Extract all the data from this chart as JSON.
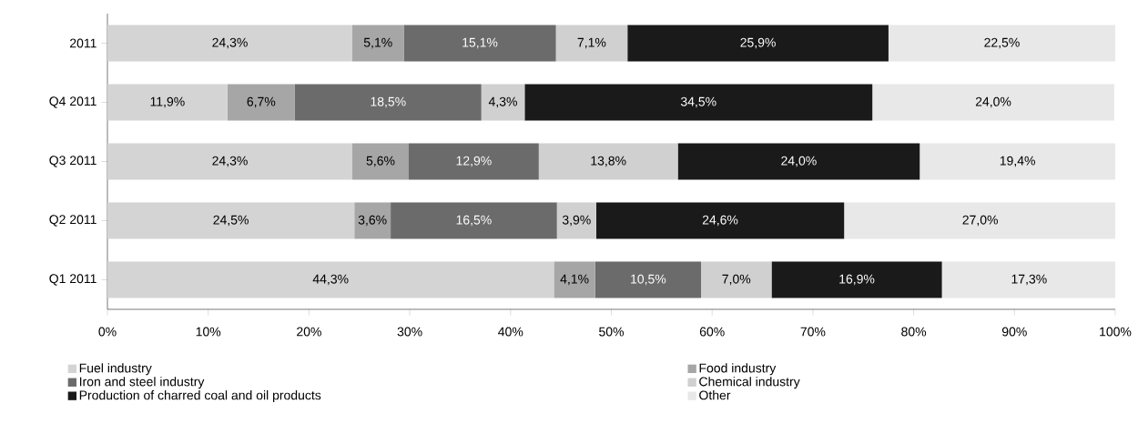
{
  "chart_data": {
    "type": "bar",
    "orientation": "horizontal",
    "stacked": true,
    "legend": "bottom",
    "categories": [
      "2011",
      "Q4 2011",
      "Q3 2011",
      "Q2 2011",
      "Q1 2011"
    ],
    "xlim": [
      0,
      100
    ],
    "xticks": [
      {
        "value": 0,
        "label": "0%"
      },
      {
        "value": 10,
        "label": "10%"
      },
      {
        "value": 20,
        "label": "20%"
      },
      {
        "value": 30,
        "label": "30%"
      },
      {
        "value": 40,
        "label": "40%"
      },
      {
        "value": 50,
        "label": "50%"
      },
      {
        "value": 60,
        "label": "60%"
      },
      {
        "value": 70,
        "label": "70%"
      },
      {
        "value": 80,
        "label": "80%"
      },
      {
        "value": 90,
        "label": "90%"
      },
      {
        "value": 100,
        "label": "100%"
      }
    ],
    "series": [
      {
        "name": "Fuel industry",
        "color": "#d4d4d4",
        "values": [
          24.3,
          11.9,
          24.3,
          24.5,
          44.3
        ],
        "value_labels": [
          "24,3%",
          "11,9%",
          "24,3%",
          "24,5%",
          "44,3%"
        ]
      },
      {
        "name": "Food industry",
        "color": "#a6a6a6",
        "values": [
          5.1,
          6.7,
          5.6,
          3.6,
          4.1
        ],
        "value_labels": [
          "5,1%",
          "6,7%",
          "5,6%",
          "3,6%",
          "4,1%"
        ]
      },
      {
        "name": "Iron and steel industry",
        "color": "#6b6b6b",
        "values": [
          15.1,
          18.5,
          12.9,
          16.5,
          10.5
        ],
        "value_labels": [
          "15,1%",
          "18,5%",
          "12,9%",
          "16,5%",
          "10,5%"
        ]
      },
      {
        "name": "Chemical industry",
        "color": "#d0d0d0",
        "values": [
          7.1,
          4.3,
          13.8,
          3.9,
          7.0
        ],
        "value_labels": [
          "7,1%",
          "4,3%",
          "13,8%",
          "3,9%",
          "7,0%"
        ]
      },
      {
        "name": "Production of charred coal and oil products",
        "color": "#1a1a1a",
        "values": [
          25.9,
          34.5,
          24.0,
          24.6,
          16.9
        ],
        "value_labels": [
          "25,9%",
          "34,5%",
          "24,0%",
          "24,6%",
          "16,9%"
        ]
      },
      {
        "name": "Other",
        "color": "#e8e8e8",
        "values": [
          22.5,
          24.0,
          19.4,
          27.0,
          17.3
        ],
        "value_labels": [
          "22,5%",
          "24,0%",
          "19,4%",
          "27,0%",
          "17,3%"
        ]
      }
    ]
  }
}
